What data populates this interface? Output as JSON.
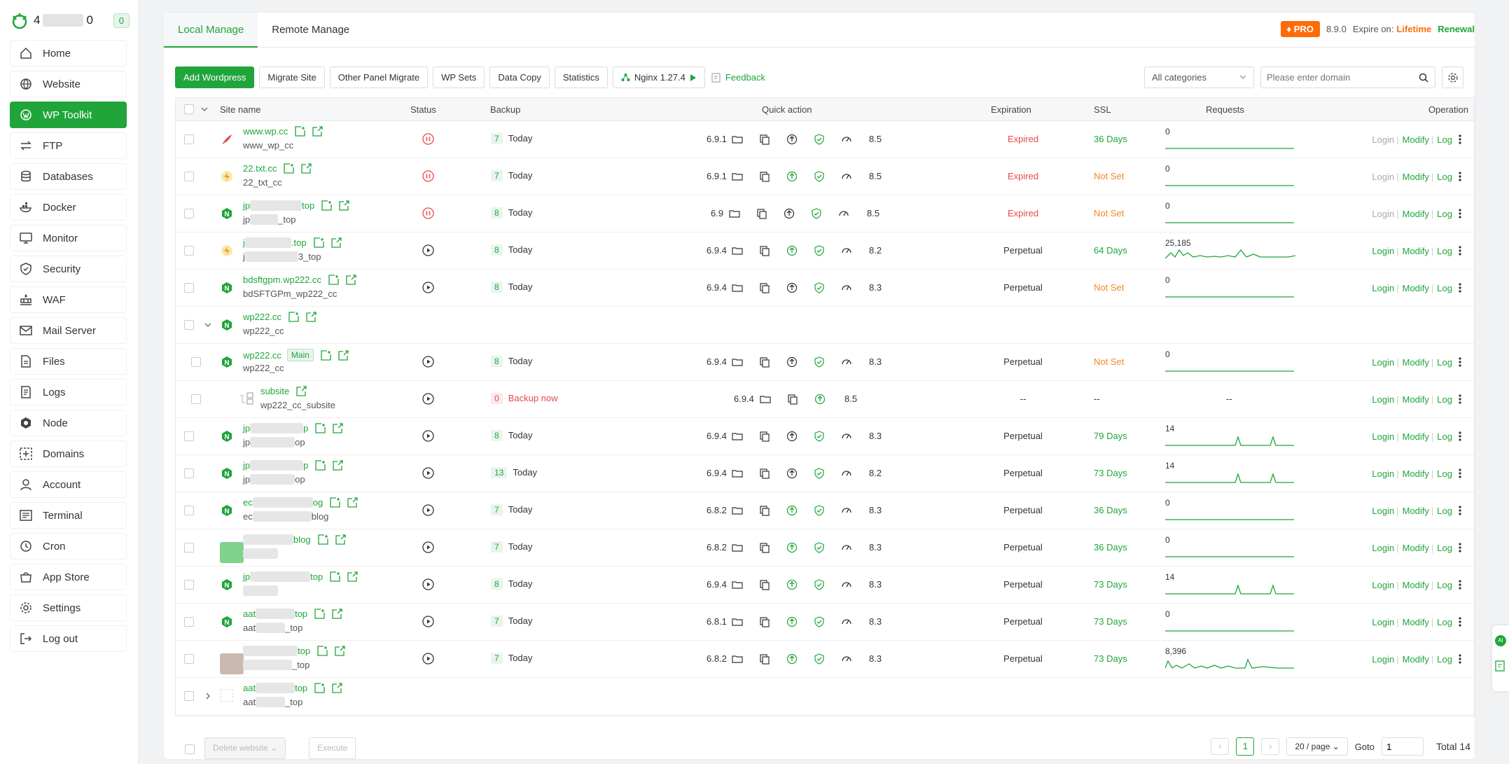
{
  "sidebar": {
    "header": {
      "prefix": "4",
      "suffix": "0",
      "badge": "0"
    },
    "items": [
      {
        "label": "Home",
        "icon": "home-icon"
      },
      {
        "label": "Website",
        "icon": "globe-icon"
      },
      {
        "label": "WP Toolkit",
        "icon": "wordpress-icon",
        "active": true
      },
      {
        "label": "FTP",
        "icon": "transfer-icon"
      },
      {
        "label": "Databases",
        "icon": "database-icon"
      },
      {
        "label": "Docker",
        "icon": "docker-icon"
      },
      {
        "label": "Monitor",
        "icon": "monitor-icon"
      },
      {
        "label": "Security",
        "icon": "shield-icon"
      },
      {
        "label": "WAF",
        "icon": "firewall-icon"
      },
      {
        "label": "Mail Server",
        "icon": "mail-icon"
      },
      {
        "label": "Files",
        "icon": "file-icon"
      },
      {
        "label": "Logs",
        "icon": "log-icon"
      },
      {
        "label": "Node",
        "icon": "node-icon"
      },
      {
        "label": "Domains",
        "icon": "domain-icon"
      },
      {
        "label": "Account",
        "icon": "user-icon"
      },
      {
        "label": "Terminal",
        "icon": "terminal-icon"
      },
      {
        "label": "Cron",
        "icon": "clock-icon"
      },
      {
        "label": "App Store",
        "icon": "store-icon"
      },
      {
        "label": "Settings",
        "icon": "settings-icon"
      },
      {
        "label": "Log out",
        "icon": "logout-icon"
      }
    ]
  },
  "tabs": [
    {
      "label": "Local Manage"
    },
    {
      "label": "Remote Manage"
    }
  ],
  "pro": {
    "badge": "PRO",
    "version": "8.9.0",
    "expire_label": "Expire on:",
    "expire_value": "Lifetime",
    "renewal": "Renewal"
  },
  "toolbar": {
    "buttons": [
      "Add Wordpress",
      "Migrate Site",
      "Other Panel Migrate",
      "WP Sets",
      "Data Copy",
      "Statistics",
      "Nginx 1.27.4"
    ],
    "feedback": "Feedback",
    "category": "All categories",
    "search_placeholder": "Please enter domain"
  },
  "columns": [
    "Site name",
    "Status",
    "Backup",
    "Quick action",
    "Expiration",
    "SSL",
    "Requests",
    "Operation"
  ],
  "rows": [
    {
      "name": "www.wp.cc",
      "alias": "www_wp_cc",
      "status": "stopped",
      "backup_count": "7",
      "backup": "Today",
      "version": "6.9.1",
      "score": "8.5",
      "expiration": "Expired",
      "ssl": "36 Days",
      "requests": "0",
      "ops": [
        "Login",
        "Modify",
        "Log"
      ]
    },
    {
      "name": "22.txt.cc",
      "alias": "22_txt_cc",
      "status": "stopped",
      "backup_count": "7",
      "backup": "Today",
      "version": "6.9.1",
      "score": "8.5",
      "expiration": "Expired",
      "ssl": "Not Set",
      "requests": "0",
      "ops": [
        "Login",
        "Modify",
        "Log"
      ]
    },
    {
      "name": "jp",
      "name_end": "top",
      "alias": "jp",
      "alias_end": "_top",
      "status": "stopped",
      "backup_count": "8",
      "backup": "Today",
      "version": "6.9",
      "score": "8.5",
      "expiration": "Expired",
      "ssl": "Not Set",
      "requests": "0",
      "ops": [
        "Login",
        "Modify",
        "Log"
      ]
    },
    {
      "name": "j",
      "name_end": ".top",
      "alias": "j",
      "alias_end": "3_top",
      "status": "running",
      "backup_count": "8",
      "backup": "Today",
      "version": "6.9.4",
      "score": "8.2",
      "expiration": "Perpetual",
      "ssl": "64 Days",
      "requests": "25,185",
      "ops": [
        "Login",
        "Modify",
        "Log"
      ]
    },
    {
      "name": "bdsftgpm.wp222.cc",
      "alias": "bdSFTGPm_wp222_cc",
      "status": "running",
      "backup_count": "8",
      "backup": "Today",
      "version": "6.9.4",
      "score": "8.3",
      "expiration": "Perpetual",
      "ssl": "Not Set",
      "requests": "0",
      "ops": [
        "Login",
        "Modify",
        "Log"
      ]
    },
    {
      "name": "wp222.cc",
      "alias": "wp222_cc",
      "group": true
    },
    {
      "name": "wp222.cc",
      "alias": "wp222_cc",
      "tag": "Main",
      "status": "running",
      "backup_count": "8",
      "backup": "Today",
      "version": "6.9.4",
      "score": "8.3",
      "expiration": "Perpetual",
      "ssl": "Not Set",
      "requests": "0",
      "ops": [
        "Login",
        "Modify",
        "Log"
      ]
    },
    {
      "name": "subsite",
      "alias": "wp222_cc_subsite",
      "status": "running",
      "backup_count": "0",
      "backup": "Backup now",
      "version": "6.9.4",
      "score": "8.5",
      "expiration": "--",
      "ssl": "--",
      "requests": "--",
      "ops": [
        "Login",
        "Modify",
        "Log"
      ]
    },
    {
      "name": "jp",
      "name_end": "p",
      "alias": "jp",
      "alias_end": "op",
      "status": "running",
      "backup_count": "8",
      "backup": "Today",
      "version": "6.9.4",
      "score": "8.3",
      "expiration": "Perpetual",
      "ssl": "79 Days",
      "requests": "14",
      "ops": [
        "Login",
        "Modify",
        "Log"
      ]
    },
    {
      "name": "jp",
      "name_end": "p",
      "alias": "jp",
      "alias_end": "op",
      "status": "running",
      "backup_count": "13",
      "backup": "Today",
      "version": "6.9.4",
      "score": "8.2",
      "expiration": "Perpetual",
      "ssl": "73 Days",
      "requests": "14",
      "ops": [
        "Login",
        "Modify",
        "Log"
      ]
    },
    {
      "name": "ec",
      "name_end": "og",
      "alias": "ec",
      "alias_end": "blog",
      "status": "running",
      "backup_count": "7",
      "backup": "Today",
      "version": "6.8.2",
      "score": "8.3",
      "expiration": "Perpetual",
      "ssl": "36 Days",
      "requests": "0",
      "ops": [
        "Login",
        "Modify",
        "Log"
      ]
    },
    {
      "name": "",
      "name_end": "blog",
      "alias": "",
      "alias_end": "",
      "status": "running",
      "backup_count": "7",
      "backup": "Today",
      "version": "6.8.2",
      "score": "8.3",
      "expiration": "Perpetual",
      "ssl": "36 Days",
      "requests": "0",
      "ops": [
        "Login",
        "Modify",
        "Log"
      ]
    },
    {
      "name": "jp",
      "name_end": "top",
      "alias": "",
      "alias_end": "",
      "status": "running",
      "backup_count": "8",
      "backup": "Today",
      "version": "6.9.4",
      "score": "8.3",
      "expiration": "Perpetual",
      "ssl": "73 Days",
      "requests": "14",
      "ops": [
        "Login",
        "Modify",
        "Log"
      ]
    },
    {
      "name": "aat",
      "name_end": "top",
      "alias": "aat",
      "alias_end": "_top",
      "status": "running",
      "backup_count": "7",
      "backup": "Today",
      "version": "6.8.1",
      "score": "8.3",
      "expiration": "Perpetual",
      "ssl": "73 Days",
      "requests": "0",
      "ops": [
        "Login",
        "Modify",
        "Log"
      ]
    },
    {
      "name": "",
      "name_end": "top",
      "alias": "",
      "alias_end": "_top",
      "status": "running",
      "backup_count": "7",
      "backup": "Today",
      "version": "6.8.2",
      "score": "8.3",
      "expiration": "Perpetual",
      "ssl": "73 Days",
      "requests": "8,396",
      "ops": [
        "Login",
        "Modify",
        "Log"
      ]
    },
    {
      "name": "aat",
      "name_end": "top",
      "alias": "aat",
      "alias_end": "_top",
      "group": true,
      "collapsed": true
    }
  ],
  "footer": {
    "bulk_action": "Delete website",
    "execute": "Execute",
    "page": "1",
    "page_size": "20 / page",
    "goto_label": "Goto",
    "goto_value": "1",
    "total": "Total 14"
  },
  "colors": {
    "accent": "#20a53a",
    "pro": "#fc6d0a",
    "error": "#e5484d",
    "warning": "#f08a24"
  }
}
